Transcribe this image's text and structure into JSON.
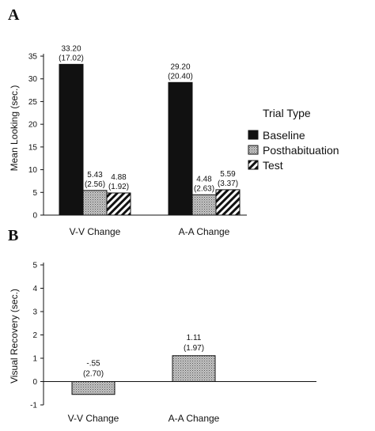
{
  "panels": [
    {
      "letter": "A"
    },
    {
      "letter": "B"
    }
  ],
  "legend": {
    "title": "Trial Type",
    "items": [
      {
        "label": "Baseline",
        "pattern": "solid"
      },
      {
        "label": "Posthabituation",
        "pattern": "stipple"
      },
      {
        "label": "Test",
        "pattern": "hatch"
      }
    ]
  },
  "colors": {
    "ink": "#111111",
    "stipple_fill": "#c4c4c4",
    "background": "#ffffff"
  },
  "chart_data": [
    {
      "type": "bar",
      "panel": "A",
      "categories": [
        "V-V Change",
        "A-A Change"
      ],
      "ylabel": "Mean Looking (sec.)",
      "xlabel": "",
      "ylim": [
        0,
        35
      ],
      "yticks": [
        0,
        5,
        10,
        15,
        20,
        25,
        30,
        35
      ],
      "series": [
        {
          "name": "Baseline",
          "values": [
            33.2,
            29.2
          ],
          "labels": [
            "33.20",
            "29.20"
          ],
          "sd_labels": [
            "(17.02)",
            "(20.40)"
          ]
        },
        {
          "name": "Posthabituation",
          "values": [
            5.43,
            4.48
          ],
          "labels": [
            "5.43",
            "4.48"
          ],
          "sd_labels": [
            "(2.56)",
            "(2.63)"
          ]
        },
        {
          "name": "Test",
          "values": [
            4.88,
            5.59
          ],
          "labels": [
            "4.88",
            "5.59"
          ],
          "sd_labels": [
            "(1.92)",
            "(3.37)"
          ]
        }
      ],
      "legend_position": "right"
    },
    {
      "type": "bar",
      "panel": "B",
      "categories": [
        "V-V Change",
        "A-A Change"
      ],
      "ylabel": "Visual Recovery  (sec.)",
      "xlabel": "",
      "ylim": [
        -1,
        5
      ],
      "yticks": [
        -1,
        0,
        1,
        2,
        3,
        4,
        5
      ],
      "series": [
        {
          "values": [
            -0.55,
            1.11
          ],
          "labels": [
            "-.55",
            "1.11"
          ],
          "sd_labels": [
            "(2.70)",
            "(1.97)"
          ]
        }
      ]
    }
  ]
}
